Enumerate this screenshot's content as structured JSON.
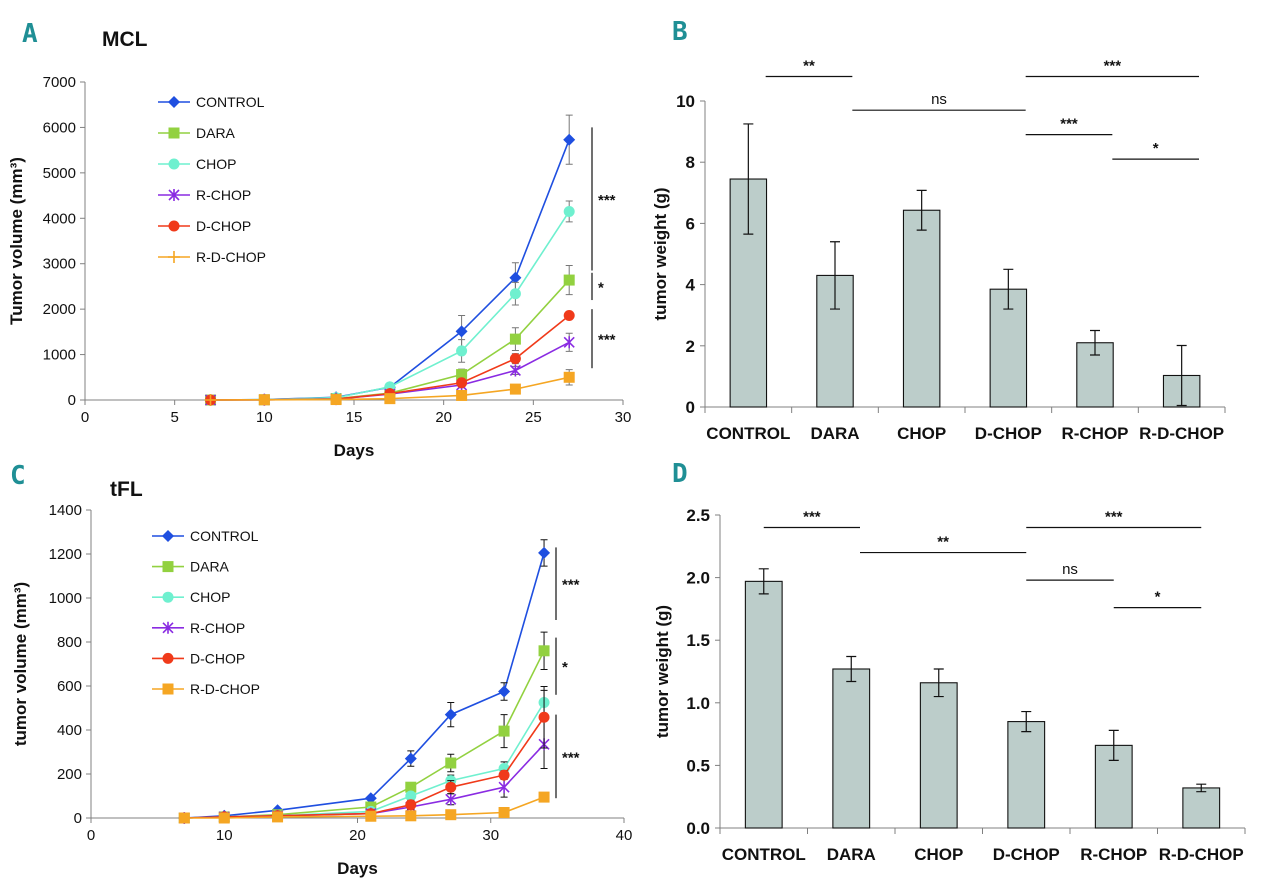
{
  "panels": {
    "A": "A",
    "B": "B",
    "C": "C",
    "D": "D"
  },
  "colors": {
    "CONTROL": "#1f4fe0",
    "DARA": "#92d140",
    "CHOP": "#6ff0cf",
    "R-CHOP": "#8a2be2",
    "D-CHOP": "#f03a1a",
    "R-D-CHOP": "#f5a623",
    "bar_fill": "#bccdca"
  },
  "chart_data": [
    {
      "id": "A",
      "type": "line",
      "title": "MCL",
      "xlabel": "Days",
      "ylabel": "Tumor volume (mm³)",
      "xlim": [
        0,
        30
      ],
      "ylim": [
        0,
        7000
      ],
      "xticks": [
        0,
        5,
        10,
        15,
        20,
        25,
        30
      ],
      "yticks": [
        0,
        1000,
        2000,
        3000,
        4000,
        5000,
        6000,
        7000
      ],
      "series": [
        {
          "name": "CONTROL",
          "marker": "diamond",
          "x": [
            7,
            10,
            14,
            17,
            21,
            24,
            27
          ],
          "values": [
            0,
            10,
            60,
            280,
            1510,
            2690,
            5730
          ],
          "err": [
            0,
            0,
            20,
            40,
            350,
            330,
            540
          ]
        },
        {
          "name": "DARA",
          "marker": "square",
          "x": [
            7,
            10,
            14,
            17,
            21,
            24,
            27
          ],
          "values": [
            0,
            5,
            30,
            150,
            560,
            1340,
            2640
          ],
          "err": [
            0,
            0,
            10,
            30,
            120,
            250,
            320
          ]
        },
        {
          "name": "CHOP",
          "marker": "circle",
          "x": [
            7,
            10,
            14,
            17,
            21,
            24,
            27
          ],
          "values": [
            0,
            10,
            50,
            290,
            1080,
            2340,
            4150
          ],
          "err": [
            0,
            0,
            15,
            40,
            250,
            250,
            230
          ]
        },
        {
          "name": "R-CHOP",
          "marker": "asterisk",
          "x": [
            7,
            10,
            14,
            17,
            21,
            24,
            27
          ],
          "values": [
            0,
            5,
            20,
            130,
            330,
            650,
            1270
          ],
          "err": [
            0,
            0,
            10,
            20,
            60,
            90,
            200
          ]
        },
        {
          "name": "D-CHOP",
          "marker": "circle",
          "x": [
            7,
            10,
            14,
            17,
            21,
            24,
            27
          ],
          "values": [
            0,
            5,
            20,
            140,
            380,
            910,
            1860
          ],
          "err": [
            0,
            0,
            10,
            20,
            70,
            110,
            0
          ]
        },
        {
          "name": "R-D-CHOP",
          "marker": "plus",
          "legend_marker": "plus",
          "end_marker": "square",
          "x": [
            7,
            10,
            14,
            17,
            21,
            24,
            27
          ],
          "values": [
            0,
            5,
            10,
            30,
            100,
            240,
            500
          ],
          "err": [
            0,
            0,
            5,
            10,
            30,
            60,
            170
          ]
        }
      ],
      "significance": [
        {
          "label": "***",
          "from": 2850,
          "to": 6000
        },
        {
          "label": "*",
          "from": 2200,
          "to": 2800
        },
        {
          "label": "***",
          "from": 700,
          "to": 2000
        }
      ]
    },
    {
      "id": "B",
      "type": "bar",
      "categories": [
        "CONTROL",
        "DARA",
        "CHOP",
        "D-CHOP",
        "R-CHOP",
        "R-D-CHOP"
      ],
      "values": [
        7.45,
        4.3,
        6.43,
        3.85,
        2.1,
        1.03
      ],
      "err": [
        1.8,
        1.1,
        0.65,
        0.65,
        0.4,
        0.98
      ],
      "ylabel": "tumor weight (g)",
      "ylim": [
        0,
        10
      ],
      "yticks": [
        0,
        2,
        4,
        6,
        8,
        10
      ],
      "ytick_labels": [
        "0",
        "2",
        "4",
        "6",
        "8",
        "10"
      ],
      "brackets": [
        {
          "label": "**",
          "x1": 0.2,
          "x2": 1.2,
          "y": 10.8
        },
        {
          "label": "ns",
          "x1": 1.2,
          "x2": 3.2,
          "y": 9.7
        },
        {
          "label": "***",
          "x1": 3.2,
          "x2": 5.2,
          "y": 10.8
        },
        {
          "label": "***",
          "x1": 3.2,
          "x2": 4.2,
          "y": 8.9
        },
        {
          "label": "*",
          "x1": 4.2,
          "x2": 5.2,
          "y": 8.1
        }
      ]
    },
    {
      "id": "C",
      "type": "line",
      "title": "tFL",
      "xlabel": "Days",
      "ylabel": "tumor volume (mm³)",
      "xlim": [
        0,
        40
      ],
      "ylim": [
        0,
        1400
      ],
      "xticks": [
        0,
        10,
        20,
        30,
        40
      ],
      "yticks": [
        0,
        200,
        400,
        600,
        800,
        1000,
        1200,
        1400
      ],
      "series": [
        {
          "name": "CONTROL",
          "marker": "diamond",
          "x": [
            7,
            10,
            14,
            21,
            24,
            27,
            31,
            34
          ],
          "values": [
            0,
            10,
            35,
            90,
            270,
            470,
            575,
            1205
          ],
          "err": [
            0,
            0,
            0,
            0,
            35,
            55,
            40,
            60
          ]
        },
        {
          "name": "DARA",
          "marker": "square",
          "x": [
            7,
            10,
            14,
            21,
            24,
            27,
            31,
            34
          ],
          "values": [
            0,
            5,
            15,
            50,
            140,
            250,
            395,
            760
          ],
          "err": [
            0,
            0,
            0,
            0,
            20,
            40,
            75,
            85
          ]
        },
        {
          "name": "CHOP",
          "marker": "circle",
          "x": [
            7,
            10,
            14,
            21,
            24,
            27,
            31,
            34
          ],
          "values": [
            0,
            5,
            10,
            30,
            100,
            170,
            225,
            525
          ],
          "err": [
            0,
            0,
            0,
            0,
            15,
            25,
            30,
            55
          ]
        },
        {
          "name": "R-CHOP",
          "marker": "asterisk",
          "x": [
            7,
            10,
            14,
            21,
            24,
            27,
            31,
            34
          ],
          "values": [
            0,
            5,
            10,
            20,
            50,
            85,
            140,
            335
          ],
          "err": [
            0,
            0,
            0,
            0,
            10,
            25,
            45,
            110
          ]
        },
        {
          "name": "D-CHOP",
          "marker": "circle",
          "x": [
            7,
            10,
            14,
            21,
            24,
            27,
            31,
            34
          ],
          "values": [
            0,
            5,
            10,
            20,
            60,
            140,
            195,
            458
          ],
          "err": [
            0,
            0,
            0,
            0,
            20,
            30,
            20,
            140
          ]
        },
        {
          "name": "R-D-CHOP",
          "marker": "square",
          "x": [
            7,
            10,
            14,
            21,
            24,
            27,
            31,
            34
          ],
          "values": [
            0,
            0,
            5,
            8,
            10,
            15,
            25,
            95
          ],
          "err": [
            0,
            0,
            0,
            0,
            0,
            5,
            5,
            20
          ]
        }
      ],
      "significance": [
        {
          "label": "***",
          "from": 900,
          "to": 1230
        },
        {
          "label": "*",
          "from": 560,
          "to": 820
        },
        {
          "label": "***",
          "from": 90,
          "to": 470
        }
      ]
    },
    {
      "id": "D",
      "type": "bar",
      "categories": [
        "CONTROL",
        "DARA",
        "CHOP",
        "D-CHOP",
        "R-CHOP",
        "R-D-CHOP"
      ],
      "values": [
        1.97,
        1.27,
        1.16,
        0.85,
        0.66,
        0.32
      ],
      "err": [
        0.1,
        0.1,
        0.11,
        0.08,
        0.12,
        0.03
      ],
      "ylabel": "tumor weight (g)",
      "ylim": [
        0,
        2.5
      ],
      "yticks": [
        0,
        0.5,
        1.0,
        1.5,
        2.0,
        2.5
      ],
      "ytick_labels": [
        "0.0",
        "0.5",
        "1.0",
        "1.5",
        "2.0",
        "2.5"
      ],
      "brackets": [
        {
          "label": "***",
          "x1": 0.0,
          "x2": 1.1,
          "y": 2.4
        },
        {
          "label": "**",
          "x1": 1.1,
          "x2": 3.0,
          "y": 2.2
        },
        {
          "label": "***",
          "x1": 3.0,
          "x2": 5.0,
          "y": 2.4
        },
        {
          "label": "ns",
          "x1": 3.0,
          "x2": 4.0,
          "y": 1.98
        },
        {
          "label": "*",
          "x1": 4.0,
          "x2": 5.0,
          "y": 1.76
        }
      ]
    }
  ]
}
